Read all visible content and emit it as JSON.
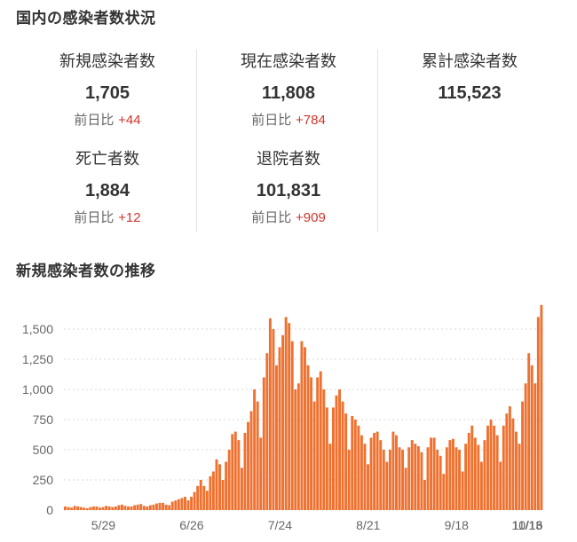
{
  "sections": {
    "stats_title": "国内の感染者数状況",
    "chart_title": "新規感染者数の推移"
  },
  "stats": [
    {
      "label": "新規感染者数",
      "value": "1,705",
      "diff_label": "前日比",
      "diff": "+44"
    },
    {
      "label": "現在感染者数",
      "value": "11,808",
      "diff_label": "前日比",
      "diff": "+784"
    },
    {
      "label": "累計感染者数",
      "value": "115,523",
      "diff_label": "",
      "diff": ""
    },
    {
      "label": "死亡者数",
      "value": "1,884",
      "diff_label": "前日比",
      "diff": "+12"
    },
    {
      "label": "退院者数",
      "value": "101,831",
      "diff_label": "前日比",
      "diff": "+909"
    }
  ],
  "colors": {
    "bar": "#ee7130",
    "diff": "#d0342c",
    "grid": "#d8d8d8"
  },
  "chart_data": {
    "type": "bar",
    "title": "新規感染者数の推移",
    "xlabel": "",
    "ylabel": "",
    "x_start": "5/17",
    "x_ticks": [
      "5/29",
      "6/26",
      "7/24",
      "8/21",
      "9/18",
      "10/16",
      "11/13"
    ],
    "y_ticks": [
      "0",
      "250",
      "500",
      "750",
      "1,000",
      "1,250",
      "1,500"
    ],
    "y_tick_values": [
      0,
      250,
      500,
      750,
      1000,
      1250,
      1500
    ],
    "ylim": [
      0,
      1750
    ],
    "grid": true,
    "values": [
      30,
      25,
      20,
      35,
      30,
      25,
      20,
      15,
      25,
      30,
      30,
      20,
      25,
      35,
      30,
      25,
      30,
      40,
      45,
      35,
      30,
      30,
      40,
      45,
      50,
      35,
      30,
      40,
      45,
      55,
      60,
      60,
      45,
      40,
      70,
      80,
      90,
      100,
      110,
      80,
      110,
      150,
      200,
      250,
      200,
      160,
      280,
      320,
      420,
      380,
      250,
      400,
      500,
      630,
      650,
      580,
      350,
      640,
      730,
      820,
      1000,
      900,
      600,
      1100,
      1300,
      1590,
      1500,
      1200,
      1350,
      1450,
      1600,
      1550,
      1400,
      1000,
      1050,
      1400,
      1350,
      1200,
      1100,
      900,
      1100,
      1150,
      1000,
      850,
      550,
      850,
      950,
      1000,
      900,
      800,
      500,
      780,
      750,
      700,
      620,
      550,
      380,
      600,
      640,
      650,
      580,
      500,
      400,
      500,
      650,
      620,
      520,
      500,
      350,
      520,
      580,
      550,
      530,
      480,
      250,
      520,
      600,
      600,
      500,
      450,
      300,
      520,
      580,
      590,
      520,
      500,
      320,
      550,
      640,
      700,
      600,
      540,
      400,
      580,
      700,
      750,
      700,
      620,
      400,
      700,
      800,
      860,
      760,
      650,
      550,
      900,
      1050,
      1300,
      1200,
      1050,
      1600,
      1700
    ]
  }
}
